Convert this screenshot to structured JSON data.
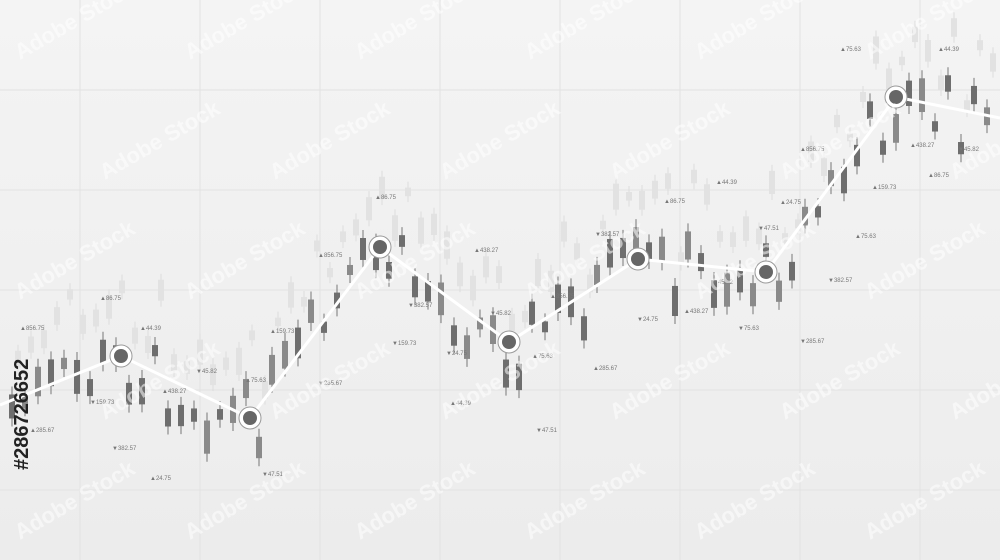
{
  "labels": [
    "▲856.75",
    "▲86.75",
    "▲44.39",
    "▼45.82",
    "▲438.27",
    "▼159.73",
    "▲285.67",
    "▼382.57",
    "▲24.75",
    "▲75.63",
    "▼47.51",
    "▲159.73",
    "▲856.75",
    "▼285.67",
    "▲86.75",
    "▼159.73",
    "▼382.57",
    "▼24.75",
    "▲438.27",
    "▼45.82",
    "▲44.39",
    "▲75.63",
    "▼47.51",
    "▲856.75",
    "▲285.67",
    "▼382.57",
    "▼24.75",
    "▲86.75",
    "▲438.27",
    "▼45.82",
    "▲44.39",
    "▼75.63",
    "▼47.51",
    "▲24.75",
    "▲856.75",
    "▼285.67",
    "▼382.57",
    "▲159.73",
    "▲75.63",
    "▲75.63",
    "▲44.39",
    "▲438.27",
    "▼45.82",
    "▲86.75"
  ],
  "watermark": "Adobe Stock",
  "stock_id": "#286726652"
}
